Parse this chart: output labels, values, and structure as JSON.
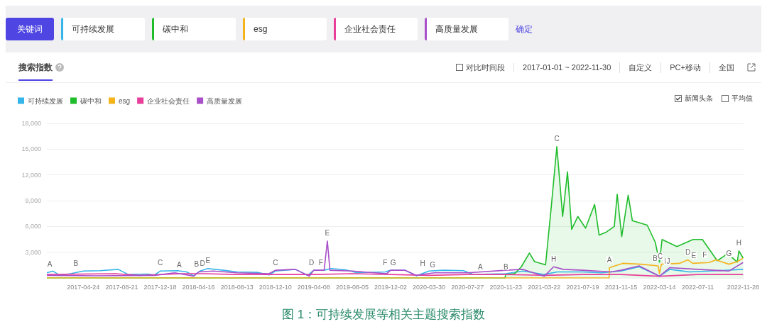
{
  "chart_data": {
    "type": "line",
    "title": "搜索指数",
    "annotations": [
      "关键词",
      "确定",
      "对比时间段",
      "2017-01-01 ~ 2022-11-30",
      "自定义",
      "PC+移动",
      "全国",
      "新闻头条",
      "平均值",
      "图 1：可持续发展等相关主题搜索指数",
      {
        "text": "A",
        "x": "2017-01-10",
        "y": 700
      },
      {
        "text": "B",
        "x": "2017-04-01",
        "y": 800
      },
      {
        "text": "C",
        "x": "2017-12-18",
        "y": 850
      },
      {
        "text": "A",
        "x": "2018-02-15",
        "y": 600
      },
      {
        "text": "B",
        "x": "2018-04-10",
        "y": 700
      },
      {
        "text": "D",
        "x": "2018-04-28",
        "y": 800
      },
      {
        "text": "E",
        "x": "2018-05-15",
        "y": 1100
      },
      {
        "text": "C",
        "x": "2018-12-10",
        "y": 900
      },
      {
        "text": "D",
        "x": "2019-04-01",
        "y": 900
      },
      {
        "text": "F",
        "x": "2019-04-30",
        "y": 900
      },
      {
        "text": "E",
        "x": "2019-05-20",
        "y": 4300
      },
      {
        "text": "F",
        "x": "2019-11-15",
        "y": 900
      },
      {
        "text": "G",
        "x": "2019-12-10",
        "y": 900
      },
      {
        "text": "H",
        "x": "2020-03-10",
        "y": 800
      },
      {
        "text": "G",
        "x": "2020-04-10",
        "y": 600
      },
      {
        "text": "A",
        "x": "2020-09-05",
        "y": 400
      },
      {
        "text": "B",
        "x": "2020-11-23",
        "y": 400
      },
      {
        "text": "C",
        "x": "2021-04-30",
        "y": 15300
      },
      {
        "text": "H",
        "x": "2021-04-20",
        "y": 1300
      },
      {
        "text": "A",
        "x": "2021-10-10",
        "y": 1200
      },
      {
        "text": "B",
        "x": "2022-03-01",
        "y": 1400
      },
      {
        "text": "C",
        "x": "2022-03-16",
        "y": 1600
      },
      {
        "text": "I",
        "x": "2022-04-01",
        "y": 1000
      },
      {
        "text": "J",
        "x": "2022-04-10",
        "y": 1000
      },
      {
        "text": "D",
        "x": "2022-06-10",
        "y": 2100
      },
      {
        "text": "E",
        "x": "2022-06-28",
        "y": 1700
      },
      {
        "text": "F",
        "x": "2022-08-01",
        "y": 1800
      },
      {
        "text": "G",
        "x": "2022-10-15",
        "y": 1900
      },
      {
        "text": "H",
        "x": "2022-11-15",
        "y": 3200
      }
    ],
    "xlim": [
      "2017-01-01",
      "2022-11-30"
    ],
    "xticks": [
      "2017-04-24",
      "2017-08-21",
      "2017-12-18",
      "2018-04-16",
      "2018-08-13",
      "2018-12-10",
      "2019-04-08",
      "2019-08-05",
      "2019-12-02",
      "2020-03-30",
      "2020-07-27",
      "2020-11-23",
      "2021-03-22",
      "2021-07-19",
      "2021-11-15",
      "2022-03-14",
      "2022-07-11",
      "2022-11-28"
    ],
    "ylim": [
      0,
      18000
    ],
    "yticks": [
      {
        "value": 0,
        "label": null
      },
      {
        "value": 3000,
        "label": "3,000"
      },
      {
        "value": 6000,
        "label": "6,000"
      },
      {
        "value": 9000,
        "label": "9,000"
      },
      {
        "value": 12000,
        "label": "12,000"
      },
      {
        "value": 15000,
        "label": "15,000"
      },
      {
        "value": 18000,
        "label": "18,000"
      }
    ],
    "grid": "y",
    "legend": "top left",
    "marker": "none",
    "line_style": "solid",
    "series": [
      {
        "name": "可持续发展",
        "color": "#35b5e9",
        "x": [
          "2017-01-01",
          "2017-01-20",
          "2017-02-10",
          "2017-03-15",
          "2017-04-24",
          "2017-06-15",
          "2017-08-10",
          "2017-09-10",
          "2017-11-10",
          "2017-12-01",
          "2017-12-18",
          "2018-02-10",
          "2018-03-10",
          "2018-04-01",
          "2018-04-20",
          "2018-05-15",
          "2018-07-01",
          "2018-08-13",
          "2018-10-15",
          "2018-11-20",
          "2018-12-10",
          "2019-02-10",
          "2019-03-20",
          "2019-04-08",
          "2019-05-10",
          "2019-06-01",
          "2019-07-15",
          "2019-08-20",
          "2019-11-15",
          "2019-12-02",
          "2020-01-15",
          "2020-02-20",
          "2020-03-30",
          "2020-05-15",
          "2020-07-15",
          "2020-08-15",
          "2020-11-23",
          "2021-01-15",
          "2021-03-22",
          "2021-05-01",
          "2021-07-19",
          "2021-09-15",
          "2021-11-15",
          "2022-01-10",
          "2022-03-14",
          "2022-04-15",
          "2022-06-15",
          "2022-08-15",
          "2022-11-28"
        ],
        "values": [
          600,
          800,
          300,
          500,
          800,
          850,
          1000,
          400,
          450,
          350,
          800,
          850,
          700,
          250,
          800,
          1100,
          900,
          700,
          650,
          350,
          800,
          1000,
          300,
          900,
          900,
          1100,
          950,
          600,
          700,
          900,
          900,
          250,
          800,
          900,
          850,
          400,
          500,
          800,
          400,
          700,
          700,
          600,
          800,
          1300,
          200,
          1000,
          700,
          800,
          1000
        ]
      },
      {
        "name": "碳中和",
        "type": "area",
        "color": "#1fbd2b",
        "x": [
          "2017-01-01",
          "2020-11-20",
          "2020-11-23",
          "2020-12-20",
          "2021-01-10",
          "2021-02-04",
          "2021-02-20",
          "2021-03-26",
          "2021-04-12",
          "2021-04-30",
          "2021-05-18",
          "2021-06-02",
          "2021-06-15",
          "2021-07-04",
          "2021-07-28",
          "2021-08-25",
          "2021-09-08",
          "2021-09-30",
          "2021-10-25",
          "2021-11-03",
          "2021-11-17",
          "2021-12-07",
          "2021-12-20",
          "2022-02-04",
          "2022-03-01",
          "2022-03-14",
          "2022-03-22",
          "2022-05-07",
          "2022-06-26",
          "2022-07-25",
          "2022-09-09",
          "2022-10-11",
          "2022-11-10",
          "2022-11-15",
          "2022-11-28"
        ],
        "values": [
          0,
          0,
          400,
          500,
          1300,
          2900,
          1900,
          1530,
          8000,
          15300,
          7160,
          12360,
          5660,
          7160,
          5800,
          8570,
          4990,
          5330,
          5990,
          9730,
          4820,
          9640,
          6660,
          6150,
          4150,
          1840,
          4480,
          3650,
          4480,
          4480,
          2000,
          2830,
          1840,
          3150,
          2330
        ]
      },
      {
        "name": "esg",
        "color": "#f5b31c",
        "x": [
          "2017-01-01",
          "2021-10-09",
          "2021-10-10",
          "2021-11-20",
          "2022-01-15",
          "2022-03-10",
          "2022-03-14",
          "2022-03-20",
          "2022-05-15",
          "2022-06-10",
          "2022-06-25",
          "2022-08-15",
          "2022-09-05",
          "2022-10-15",
          "2022-11-10",
          "2022-11-28"
        ],
        "values": [
          0,
          0,
          1200,
          1700,
          1600,
          1400,
          500,
          1600,
          1700,
          2100,
          1700,
          1800,
          2100,
          1600,
          1900,
          2300
        ]
      },
      {
        "name": "企业社会责任",
        "color": "#e8409a",
        "x": [
          "2017-01-01",
          "2017-08-01",
          "2017-10-15",
          "2018-03-01",
          "2018-05-01",
          "2018-08-13",
          "2018-12-10",
          "2019-04-08",
          "2019-08-05",
          "2019-12-02",
          "2020-03-30",
          "2020-07-27",
          "2020-11-23",
          "2021-03-22",
          "2021-07-19",
          "2021-11-15",
          "2022-03-14",
          "2022-07-11",
          "2022-11-28"
        ],
        "values": [
          400,
          500,
          300,
          500,
          500,
          400,
          400,
          400,
          500,
          400,
          300,
          400,
          400,
          300,
          400,
          400,
          200,
          400,
          400
        ]
      },
      {
        "name": "高质量发展",
        "color": "#a94fc9",
        "x": [
          "2017-01-01",
          "2017-06-01",
          "2017-12-01",
          "2018-02-01",
          "2018-04-01",
          "2018-04-16",
          "2018-06-01",
          "2018-08-13",
          "2018-11-20",
          "2018-12-10",
          "2019-02-10",
          "2019-03-25",
          "2019-04-08",
          "2019-05-10",
          "2019-05-20",
          "2019-05-28",
          "2019-08-05",
          "2019-11-20",
          "2019-12-02",
          "2020-01-15",
          "2020-02-20",
          "2020-04-15",
          "2020-07-27",
          "2020-11-23",
          "2021-01-15",
          "2021-03-22",
          "2021-04-20",
          "2021-05-20",
          "2021-07-19",
          "2021-10-15",
          "2021-11-15",
          "2022-01-10",
          "2022-03-14",
          "2022-04-15",
          "2022-07-11",
          "2022-10-15",
          "2022-11-28"
        ],
        "values": [
          300,
          250,
          300,
          600,
          200,
          700,
          800,
          600,
          500,
          900,
          1000,
          200,
          900,
          900,
          4300,
          900,
          800,
          500,
          900,
          900,
          300,
          600,
          600,
          900,
          1000,
          200,
          1300,
          1000,
          900,
          700,
          900,
          1400,
          200,
          1200,
          1000,
          800,
          1800
        ]
      }
    ]
  }
}
